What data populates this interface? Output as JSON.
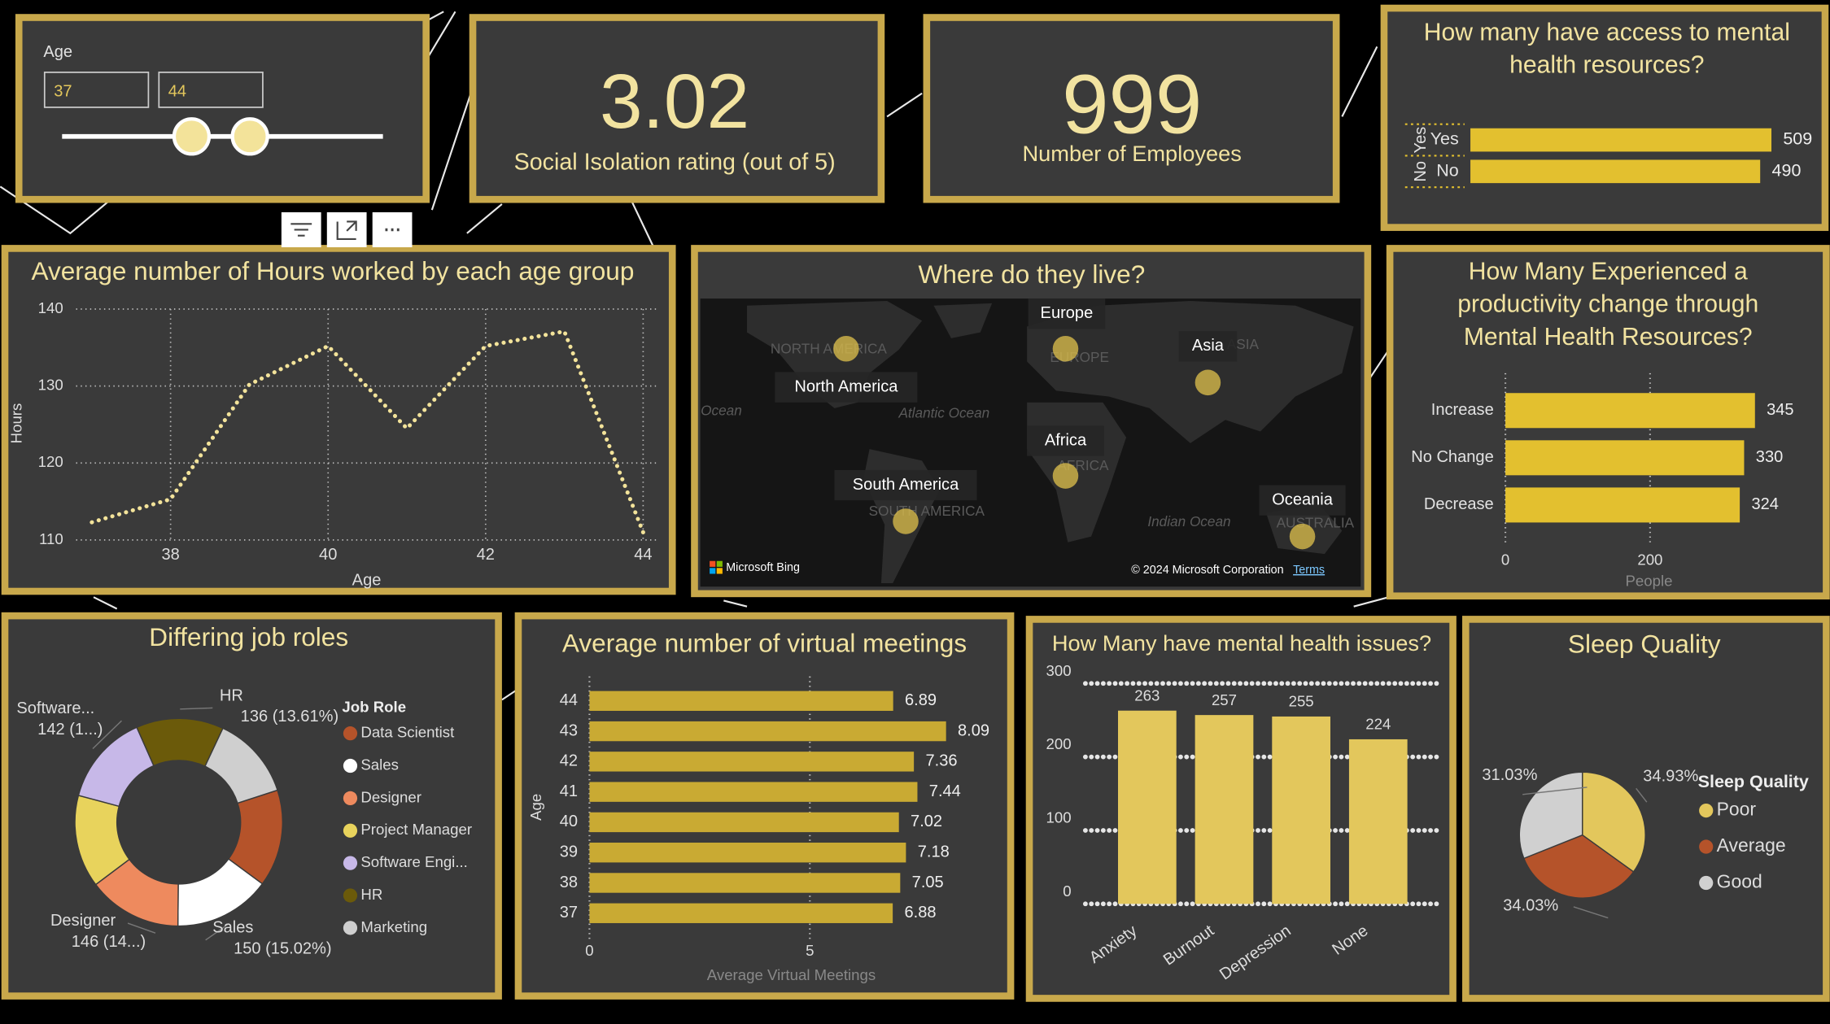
{
  "slicer": {
    "label": "Age",
    "from": "37",
    "to": "44"
  },
  "cards": [
    {
      "value": 3.02,
      "label": "Social Isolation rating (out of 5)"
    },
    {
      "value": 999,
      "label": "Number of Employees"
    }
  ],
  "chart_data": [
    {
      "type": "hbar",
      "title": "How many have access to mental health resources?",
      "categories": [
        "Yes",
        "No"
      ],
      "values": [
        509,
        490
      ],
      "color": "#e3c02f"
    },
    {
      "type": "line",
      "title": "Average number of Hours worked by each age group",
      "x": [
        37,
        38,
        39,
        40,
        41,
        42,
        43,
        44
      ],
      "values": [
        112.3,
        115.3,
        130.2,
        135.2,
        124.5,
        135.2,
        137.1,
        111
      ],
      "xlim": [
        37,
        44
      ],
      "ylim": [
        110,
        140
      ],
      "xticks": [
        38,
        40,
        42,
        44
      ],
      "yticks": [
        110,
        120,
        130,
        140
      ],
      "x_label": "Age",
      "y_label": "Hours",
      "color": "#f3e39a",
      "grid": true
    },
    {
      "type": "hbar",
      "title": "How Many Experienced a productivity change through Mental Health Resources?",
      "categories": [
        "Increase",
        "No Change",
        "Decrease"
      ],
      "values": [
        345,
        330,
        324
      ],
      "xlim": [
        0,
        400
      ],
      "xticks": [
        0,
        200
      ],
      "x_label": "People",
      "color": "#e3c02f",
      "grid": true
    },
    {
      "type": "donut",
      "title": "Differing job roles",
      "legend_title": "Job Role",
      "categories": [
        "Data Scientist",
        "Sales",
        "Designer",
        "Project Manager",
        "Software Engi...",
        "HR",
        "Marketing"
      ],
      "values": [
        151,
        150,
        146,
        144,
        142,
        136,
        130
      ],
      "colors": [
        "#b5532a",
        "#ffffff",
        "#ee8a5e",
        "#e8d35c",
        "#c7b8e8",
        "#6b5a0a",
        "#cfcfcf"
      ],
      "label_names": [
        null,
        "Sales",
        "Designer",
        null,
        "Software...",
        "HR",
        null
      ],
      "value_labels": [
        null,
        "150 (15.02%)",
        "146 (14...)",
        null,
        "142 (1...)",
        "136 (13.61%)",
        null
      ]
    },
    {
      "type": "hbar",
      "title": "Average number of virtual meetings",
      "categories": [
        44,
        43,
        42,
        41,
        40,
        39,
        38,
        37
      ],
      "values": [
        6.89,
        8.09,
        7.36,
        7.44,
        7.02,
        7.18,
        7.05,
        6.88
      ],
      "xlim": [
        0,
        9
      ],
      "xticks": [
        0,
        5
      ],
      "x_label": "Average Virtual Meetings",
      "y_label": "Age",
      "color": "#c9aa33",
      "grid": true
    },
    {
      "type": "bar",
      "title": "How Many have mental health issues?",
      "categories": [
        "Anxiety",
        "Burnout",
        "Depression",
        "None"
      ],
      "values": [
        263,
        257,
        255,
        224
      ],
      "ylim": [
        0,
        300
      ],
      "yticks": [
        0,
        100,
        200,
        300
      ],
      "color": "#e3c75c",
      "grid": true
    },
    {
      "type": "pie",
      "title": "Sleep Quality",
      "legend_title": "Sleep Quality",
      "categories": [
        "Poor",
        "Average",
        "Good"
      ],
      "values": [
        34.93,
        34.03,
        31.03
      ],
      "value_labels": [
        "34.93%",
        "34.03%",
        "31.03%"
      ],
      "colors": [
        "#e3c75c",
        "#b5532a",
        "#d0d0d0"
      ]
    }
  ],
  "map": {
    "title": "Where do they live?",
    "regions": [
      "North America",
      "Europe",
      "Asia",
      "Africa",
      "South America",
      "Oceania"
    ],
    "tile_labels": [
      "NORTH AMERICA",
      "EUROPE",
      "ASIA",
      "AFRICA",
      "SOUTH AMERICA",
      "AUSTRALIA",
      "Atlantic Ocean",
      "Indian Ocean",
      "Ocean"
    ],
    "provider": "Microsoft Bing",
    "copyright": "© 2024 Microsoft Corporation",
    "terms": "Terms"
  }
}
